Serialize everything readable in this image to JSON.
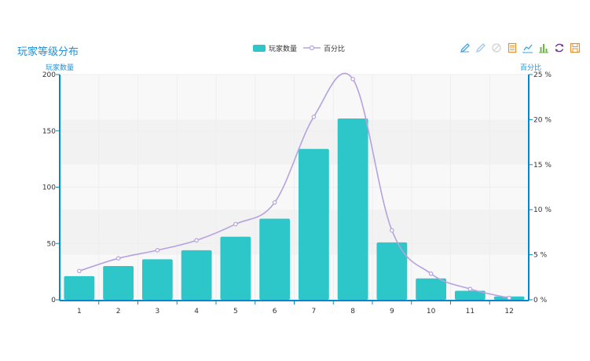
{
  "chart_data": {
    "type": "bar",
    "title": "玩家等级分布",
    "categories": [
      "1",
      "2",
      "3",
      "4",
      "5",
      "6",
      "7",
      "8",
      "9",
      "10",
      "11",
      "12"
    ],
    "series": [
      {
        "name": "玩家数量",
        "type": "bar",
        "axis": "left",
        "values": [
          21,
          30,
          36,
          44,
          56,
          72,
          134,
          161,
          51,
          19,
          8,
          3
        ]
      },
      {
        "name": "百分比",
        "type": "line",
        "axis": "right",
        "smooth": true,
        "values": [
          3.2,
          4.6,
          5.5,
          6.6,
          8.4,
          10.8,
          20.3,
          24.5,
          7.7,
          2.9,
          1.2,
          0.2
        ]
      }
    ],
    "yAxisLeft": {
      "name": "玩家数量",
      "min": 0,
      "max": 200,
      "ticks": [
        "0",
        "50",
        "100",
        "150",
        "200"
      ]
    },
    "yAxisRight": {
      "name": "百分比",
      "min": 0,
      "max": 25,
      "ticks": [
        "0 %",
        "5 %",
        "10 %",
        "15 %",
        "20 %",
        "25 %"
      ]
    },
    "legend_position": "top-center",
    "grid": true
  },
  "colors": {
    "bar": "#2ec7c9",
    "line": "#b6a2de",
    "axis": "#008acd",
    "title": "#1f8fd6"
  },
  "toolbox": [
    {
      "icon": "mark-pen-icon",
      "color": "#45a0e0"
    },
    {
      "icon": "mark-undo-icon",
      "color": "#9fc8ea"
    },
    {
      "icon": "mark-clear-icon",
      "color": "#d0d0d0"
    },
    {
      "icon": "data-view-icon",
      "color": "#e8902c"
    },
    {
      "icon": "line-chart-icon",
      "color": "#2ea8e0"
    },
    {
      "icon": "bar-chart-icon",
      "color": "#6ab845"
    },
    {
      "icon": "restore-icon",
      "color": "#6c3591"
    },
    {
      "icon": "save-image-icon",
      "color": "#e8902c"
    }
  ]
}
